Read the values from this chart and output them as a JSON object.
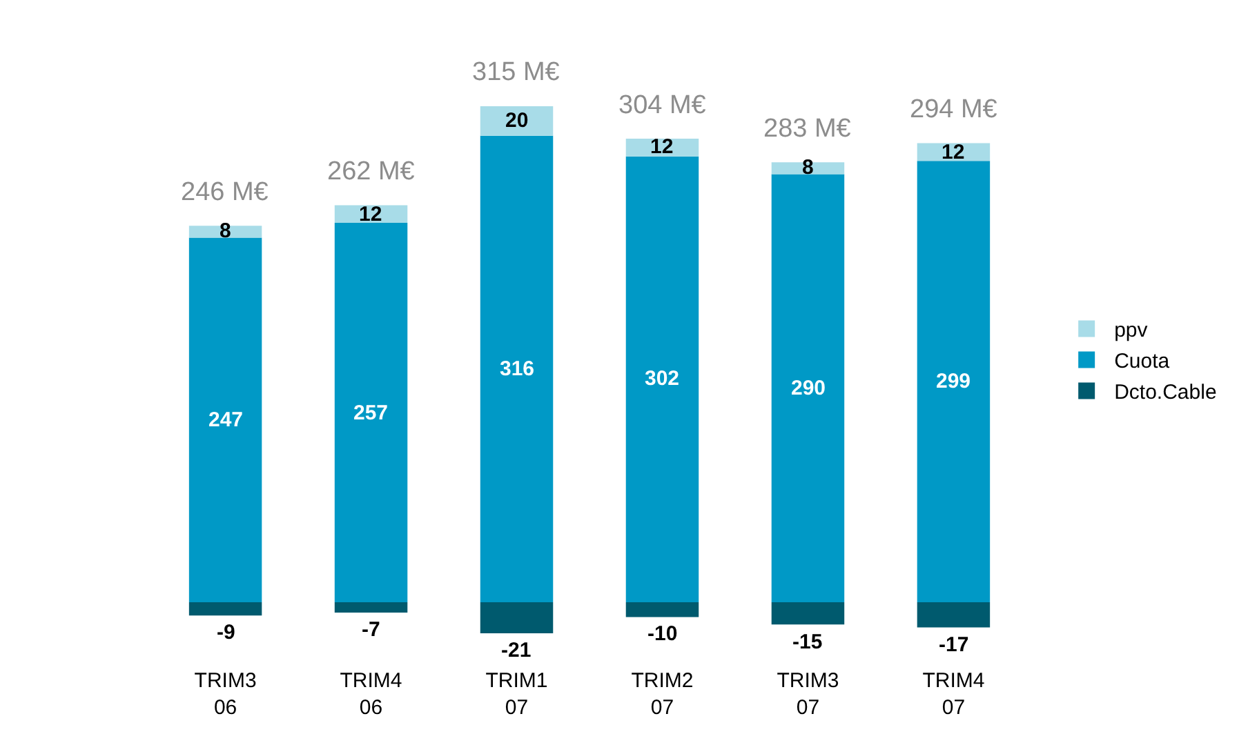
{
  "chart_data": {
    "type": "bar",
    "stacked": true,
    "categories": [
      "TRIM3\n06",
      "TRIM4\n06",
      "TRIM1\n07",
      "TRIM2\n07",
      "TRIM3\n07",
      "TRIM4\n07"
    ],
    "series": [
      {
        "name": "Cuota",
        "color": "#0099c6",
        "values": [
          247,
          257,
          316,
          302,
          290,
          299
        ]
      },
      {
        "name": "ppv",
        "color": "#a8dce8",
        "values": [
          8,
          12,
          20,
          12,
          8,
          12
        ]
      },
      {
        "name": "Dcto.Cable",
        "color": "#005a6e",
        "values": [
          -9,
          -7,
          -21,
          -10,
          -15,
          -17
        ]
      }
    ],
    "data_labels": true,
    "totals": [
      "246 M€",
      "262 M€",
      "315 M€",
      "304 M€",
      "283 M€",
      "294 M€"
    ],
    "legend": "right",
    "grid": false
  }
}
